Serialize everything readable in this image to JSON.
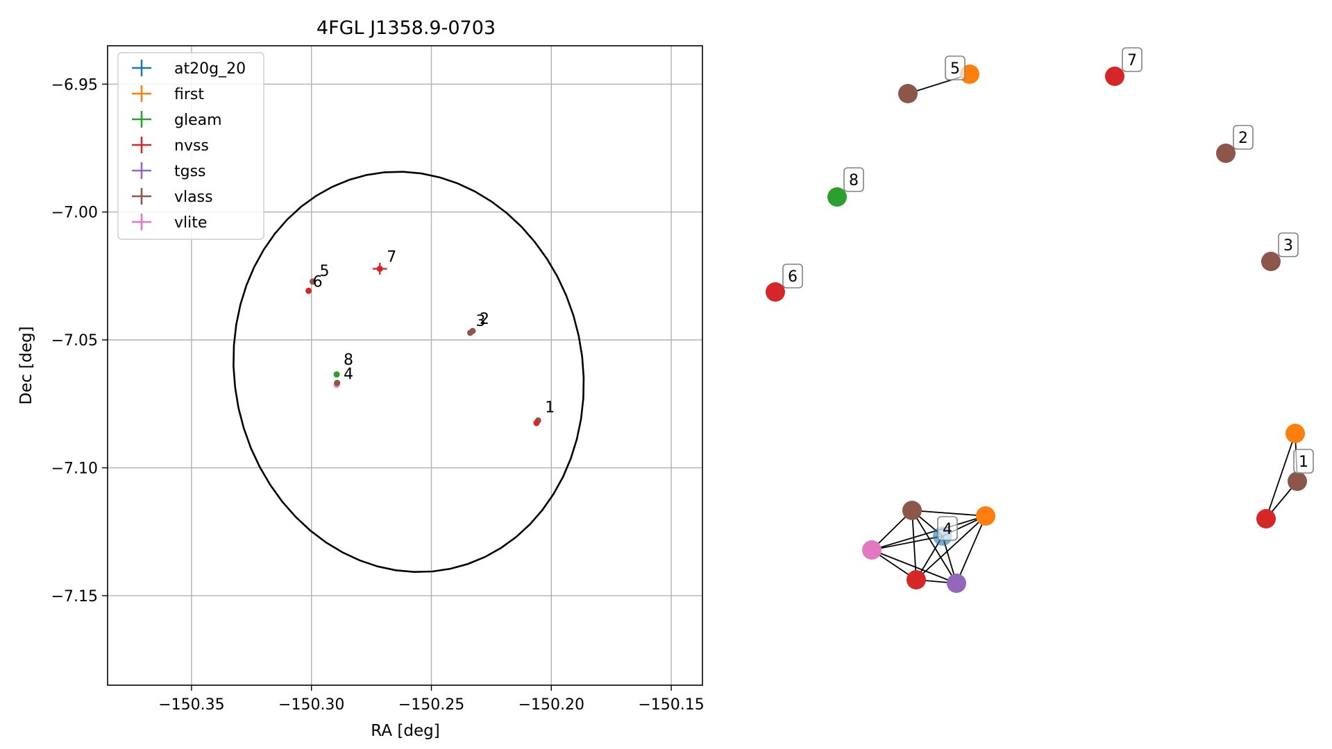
{
  "chart_data": [
    {
      "type": "scatter",
      "title": "4FGL J1358.9-0703",
      "xlabel": "RA [deg]",
      "ylabel": "Dec [deg]",
      "xlim": [
        -150.385,
        -150.137
      ],
      "ylim": [
        -7.185,
        -6.935
      ],
      "xticks": [
        -150.35,
        -150.3,
        -150.25,
        -150.2,
        -150.15
      ],
      "xtick_labels": [
        "−150.35",
        "−150.30",
        "−150.25",
        "−150.20",
        "−150.15"
      ],
      "yticks": [
        -6.95,
        -7.0,
        -7.05,
        -7.1,
        -7.15
      ],
      "ytick_labels": [
        "−6.95",
        "−7.00",
        "−7.05",
        "−7.10",
        "−7.15"
      ],
      "grid": true,
      "legend_position": "top-left",
      "catalogs": [
        {
          "name": "at20g_20",
          "color": "#1f77b4"
        },
        {
          "name": "first",
          "color": "#ff7f0e"
        },
        {
          "name": "gleam",
          "color": "#2ca02c"
        },
        {
          "name": "nvss",
          "color": "#d62728"
        },
        {
          "name": "tgss",
          "color": "#9467bd"
        },
        {
          "name": "vlass",
          "color": "#8c564b"
        },
        {
          "name": "vlite",
          "color": "#e377c2"
        }
      ],
      "points": [
        {
          "label": "1",
          "catalog": "vlass",
          "ra": -150.2055,
          "dec": -7.0815
        },
        {
          "label": "",
          "catalog": "nvss",
          "ra": -150.2062,
          "dec": -7.0825
        },
        {
          "label": "2",
          "catalog": "vlass",
          "ra": -150.2328,
          "dec": -7.0465
        },
        {
          "label": "3",
          "catalog": "vlass",
          "ra": -150.2338,
          "dec": -7.0472
        },
        {
          "label": "4",
          "catalog": "vlite",
          "ra": -150.2895,
          "dec": -7.0675
        },
        {
          "label": "",
          "catalog": "vlass",
          "ra": -150.2893,
          "dec": -7.0668
        },
        {
          "label": "8",
          "catalog": "gleam",
          "ra": -150.2895,
          "dec": -7.0635
        },
        {
          "label": "5",
          "catalog": "vlass",
          "ra": -150.2995,
          "dec": -7.0272
        },
        {
          "label": "6",
          "catalog": "nvss",
          "ra": -150.3012,
          "dec": -7.0308
        },
        {
          "label": "7",
          "catalog": "nvss",
          "ra": -150.2715,
          "dec": -7.0222,
          "err": [
            0.003,
            0.0023
          ]
        }
      ],
      "ellipse": {
        "center_ra": -150.2595,
        "center_dec": -7.0625,
        "semi_ra": 0.0725,
        "semi_dec": 0.0787,
        "angle_deg": -12
      }
    },
    {
      "type": "network",
      "nodes": [
        {
          "id": "n5v",
          "catalog": "vlass"
        },
        {
          "id": "n5f",
          "catalog": "first",
          "label": "5"
        },
        {
          "id": "n7",
          "catalog": "nvss",
          "label": "7"
        },
        {
          "id": "n2",
          "catalog": "vlass",
          "label": "2"
        },
        {
          "id": "n8",
          "catalog": "gleam",
          "label": "8"
        },
        {
          "id": "n3",
          "catalog": "vlass",
          "label": "3"
        },
        {
          "id": "n6",
          "catalog": "nvss",
          "label": "6"
        },
        {
          "id": "n1f",
          "catalog": "first"
        },
        {
          "id": "n1v",
          "catalog": "vlass",
          "label": "1"
        },
        {
          "id": "n1n",
          "catalog": "nvss"
        },
        {
          "id": "n4v",
          "catalog": "vlass"
        },
        {
          "id": "n4f",
          "catalog": "first"
        },
        {
          "id": "n4a",
          "catalog": "at20g_20",
          "label": "4"
        },
        {
          "id": "n4l",
          "catalog": "vlite"
        },
        {
          "id": "n4n",
          "catalog": "nvss"
        },
        {
          "id": "n4t",
          "catalog": "tgss"
        }
      ],
      "edges": [
        [
          "n5v",
          "n5f"
        ],
        [
          "n1f",
          "n1v"
        ],
        [
          "n1f",
          "n1n"
        ],
        [
          "n1v",
          "n1n"
        ],
        [
          "n4v",
          "n4f"
        ],
        [
          "n4v",
          "n4a"
        ],
        [
          "n4v",
          "n4l"
        ],
        [
          "n4v",
          "n4n"
        ],
        [
          "n4v",
          "n4t"
        ],
        [
          "n4f",
          "n4a"
        ],
        [
          "n4f",
          "n4l"
        ],
        [
          "n4f",
          "n4n"
        ],
        [
          "n4f",
          "n4t"
        ],
        [
          "n4a",
          "n4l"
        ],
        [
          "n4a",
          "n4n"
        ],
        [
          "n4a",
          "n4t"
        ],
        [
          "n4l",
          "n4n"
        ],
        [
          "n4l",
          "n4t"
        ],
        [
          "n4n",
          "n4t"
        ]
      ]
    }
  ]
}
